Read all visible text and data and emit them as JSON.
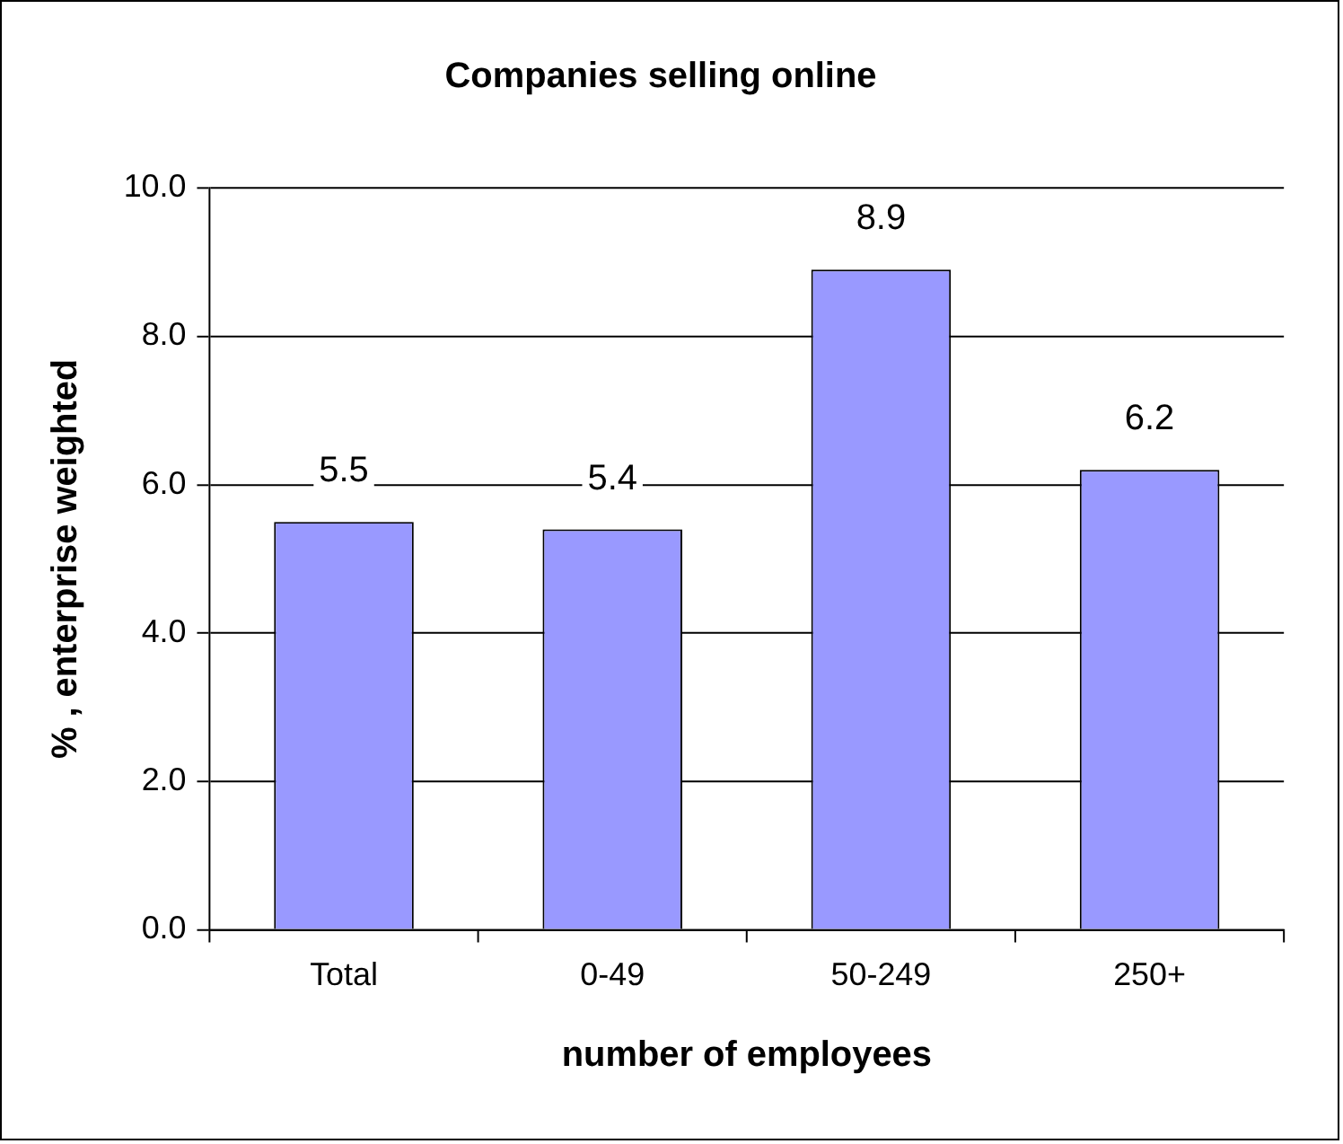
{
  "chart_data": {
    "type": "bar",
    "title": "Companies selling online",
    "xlabel": "number of employees",
    "ylabel": "% , enterprise weighted",
    "categories": [
      "Total",
      "0-49",
      "50-249",
      "250+"
    ],
    "values": [
      5.5,
      5.4,
      8.9,
      6.2
    ],
    "color": "#9999ff",
    "ylim": [
      0,
      10
    ],
    "yticks": [
      {
        "value": 0,
        "label": "0.0"
      },
      {
        "value": 2,
        "label": "2.0"
      },
      {
        "value": 4,
        "label": "4.0"
      },
      {
        "value": 6,
        "label": "6.0"
      },
      {
        "value": 8,
        "label": "8.0"
      },
      {
        "value": 10,
        "label": "10.0"
      }
    ],
    "grid": "y",
    "legend": false,
    "data_labels": true
  }
}
